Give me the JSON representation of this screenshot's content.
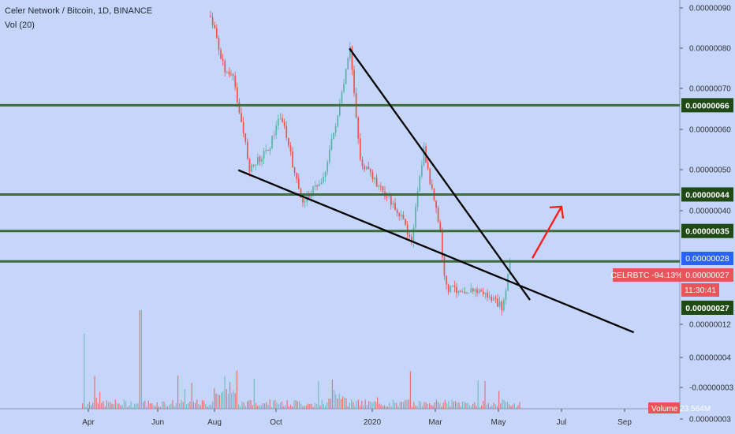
{
  "header": {
    "symbol_line": "Celer Network / Bitcoin, 1D, BINANCE",
    "volume_line": "Vol (20)"
  },
  "colors": {
    "background": "#c5d6fa",
    "level_line": "#3d6b3a",
    "level_badge": "#1f4a16",
    "price_badge": "#2962ff",
    "last_badge": "#e85457",
    "up_candle": "#5bb3a8",
    "down_candle": "#ef5350",
    "trendline": "#000000",
    "arrow": "#ff1a1a"
  },
  "chart_data": {
    "type": "candlestick",
    "title": "Celer Network / Bitcoin, 1D, BINANCE",
    "x_tick_labels": [
      "Apr",
      "Jun",
      "Aug",
      "Oct",
      "2020",
      "Mar",
      "May",
      "Jul",
      "Sep"
    ],
    "y_tick_labels": [
      "0.00000090",
      "0.00000080",
      "0.00000070",
      "0.00000060",
      "0.00000050",
      "0.00000040",
      "0.00000012",
      "0.00000004",
      "-0.00000003",
      "0.00000003"
    ],
    "y_tick_values": [
      9e-07,
      8e-07,
      7e-07,
      6e-07,
      5e-07,
      4e-07
    ],
    "horizontal_levels": [
      {
        "label": "0.00000066",
        "value": 6.6e-07
      },
      {
        "label": "0.00000044",
        "value": 4.4e-07
      },
      {
        "label": "0.00000035",
        "value": 3.5e-07
      },
      {
        "label": "0.00000027",
        "value": 2.75e-07
      }
    ],
    "badges": [
      {
        "label": "0.00000028",
        "kind": "current"
      },
      {
        "label": "0.00000027",
        "kind": "last"
      },
      {
        "label": "11:30:41",
        "kind": "countdown"
      },
      {
        "label": "0.00000027",
        "kind": "level"
      }
    ],
    "symbol_badge": "CELRBTC -94.13%",
    "volume_badge": "Volume 23.564M",
    "price_series": [
      {
        "t": "Jul 27",
        "close": 8.8e-07
      },
      {
        "t": "Aug 10",
        "close": 7.5e-07
      },
      {
        "t": "Aug 20",
        "close": 7.2e-07
      },
      {
        "t": "Sep 5",
        "close": 5e-07
      },
      {
        "t": "Sep 25",
        "close": 5.6e-07
      },
      {
        "t": "Oct 5",
        "close": 6.4e-07
      },
      {
        "t": "Oct 25",
        "close": 4.2e-07
      },
      {
        "t": "Nov 15",
        "close": 4.8e-07
      },
      {
        "t": "Dec 1",
        "close": 6.7e-07
      },
      {
        "t": "Dec 10",
        "close": 8e-07
      },
      {
        "t": "Dec 20",
        "close": 5.2e-07
      },
      {
        "t": "Jan 25",
        "close": 4e-07
      },
      {
        "t": "Feb 8",
        "close": 3.3e-07
      },
      {
        "t": "Feb 20",
        "close": 5.5e-07
      },
      {
        "t": "Mar 5",
        "close": 3.5e-07
      },
      {
        "t": "Mar 10",
        "close": 2.1e-07
      },
      {
        "t": "Apr 15",
        "close": 2e-07
      },
      {
        "t": "May 5",
        "close": 1.6e-07
      },
      {
        "t": "May 12",
        "close": 2.8e-07
      }
    ],
    "trendlines": [
      {
        "name": "upper-trendline",
        "from": {
          "t": "Dec 10",
          "v": 8e-07
        },
        "to": {
          "t": "Jun 1",
          "v": 1.8e-07
        }
      },
      {
        "name": "lower-trendline",
        "from": {
          "t": "Aug 25",
          "v": 5e-07
        },
        "to": {
          "t": "Sep 10 2020",
          "v": 1e-07
        }
      }
    ],
    "annotation": {
      "type": "arrow",
      "direction": "up",
      "from_value": 2.75e-07,
      "to_value": 4.1e-07
    }
  }
}
